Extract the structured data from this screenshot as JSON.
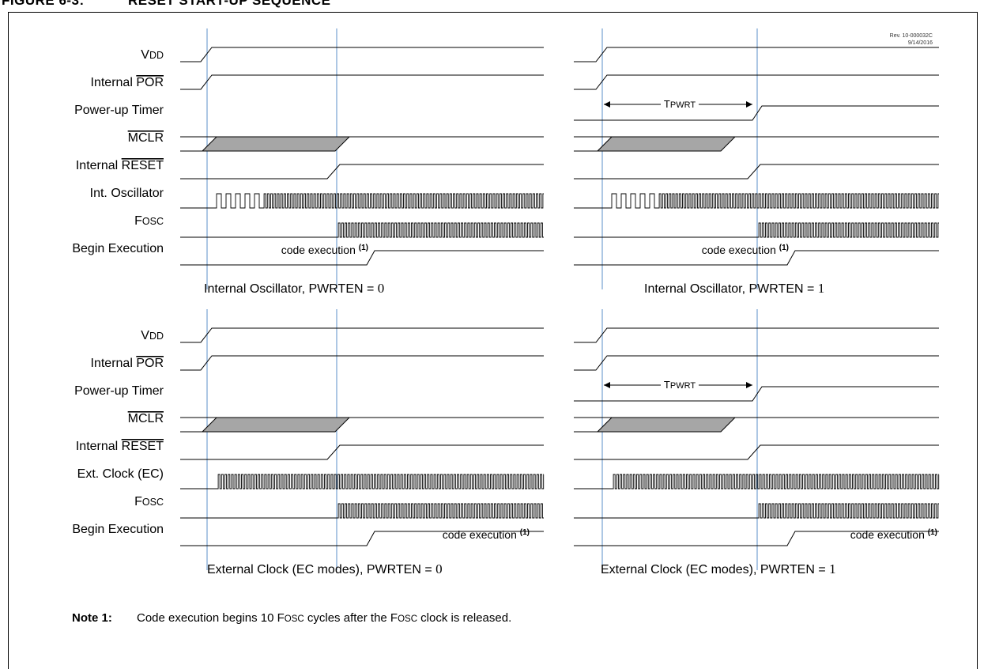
{
  "figure": {
    "number": "FIGURE 6-3:",
    "title": "RESET START-UP SEQUENCE",
    "revision": "Rev. 10-000032C",
    "date": "9/14/2016"
  },
  "signal_labels_top": [
    "V_DD",
    "Internal POR",
    "Power-up Timer",
    "MCLR",
    "Internal RESET",
    "Int. Oscillator",
    "F_OSC",
    "Begin Execution"
  ],
  "signal_labels_bottom": [
    "V_DD",
    "Internal POR",
    "Power-up Timer",
    "MCLR",
    "Internal RESET",
    "Ext. Clock (EC)",
    "F_OSC",
    "Begin Execution"
  ],
  "labels": {
    "vdd_main": "V",
    "vdd_sub": "DD",
    "internal": "Internal",
    "por": "POR",
    "power_up_timer": "Power-up Timer",
    "mclr": "MCLR",
    "reset": "RESET",
    "int_oscillator": "Int. Oscillator",
    "ext_clock": "Ext. Clock (EC)",
    "fosc_main": "F",
    "fosc_sub": "OSC",
    "begin_execution": "Begin Execution",
    "tpwrt_main": "T",
    "tpwrt_sub": "PWRT",
    "code_execution": "code execution",
    "note_ref": "(1)"
  },
  "panels": [
    {
      "caption": "Internal Oscillator, PWRTEN = ",
      "value": "0"
    },
    {
      "caption": "Internal Oscillator, PWRTEN = ",
      "value": "1"
    },
    {
      "caption": "External Clock (EC modes), PWRTEN = ",
      "value": "0"
    },
    {
      "caption": "External Clock (EC modes), PWRTEN = ",
      "value": "1"
    }
  ],
  "note": {
    "label": "Note 1:",
    "text_parts": [
      "Code execution begins 10 F",
      "OSC",
      " cycles after the F",
      "OSC",
      " clock is released."
    ]
  }
}
